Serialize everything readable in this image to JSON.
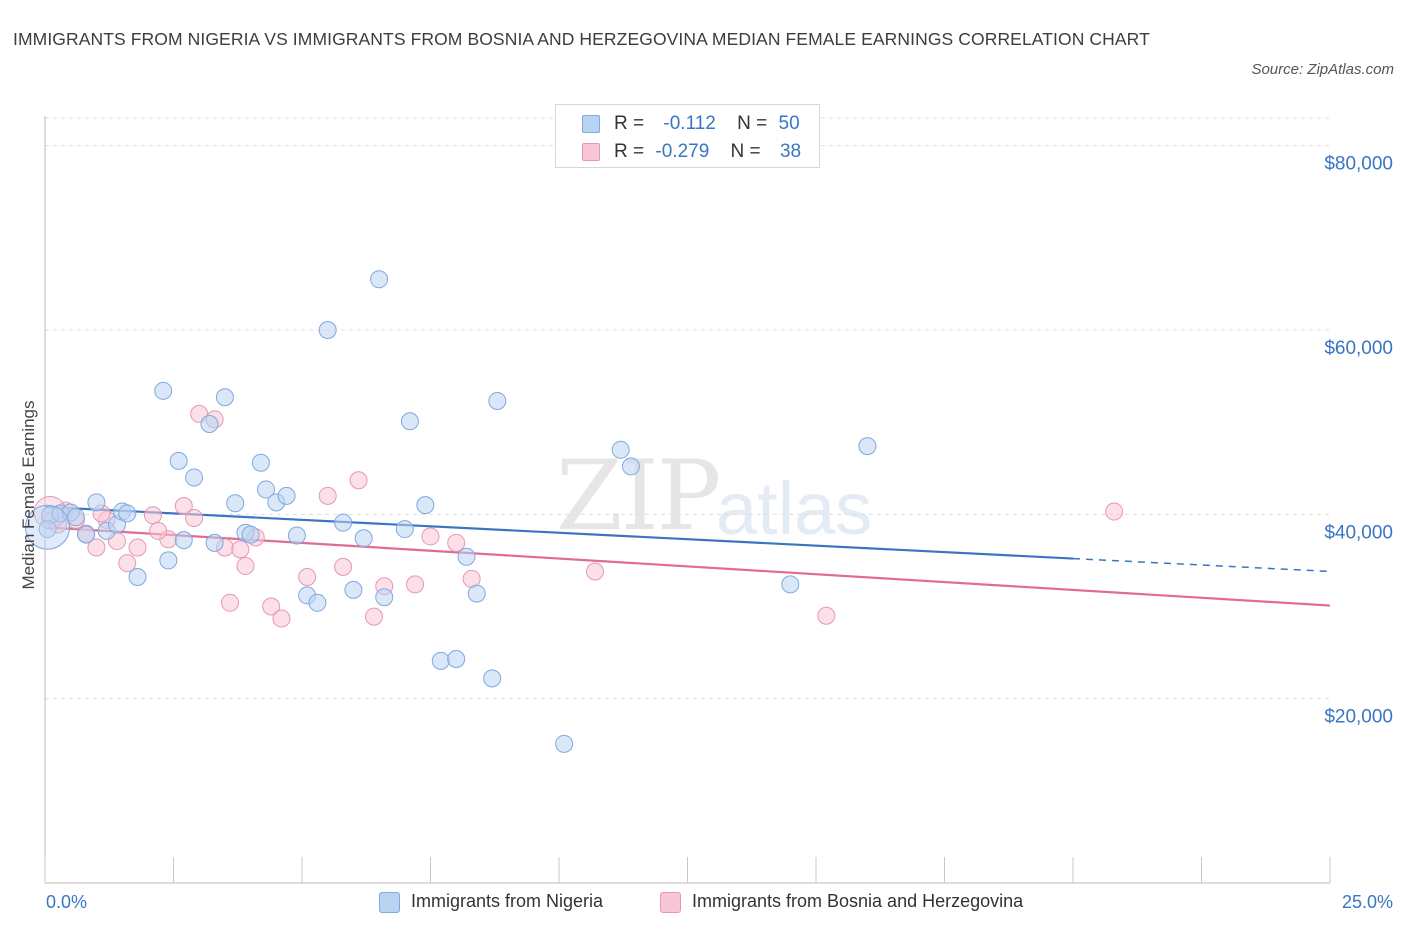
{
  "title": "IMMIGRANTS FROM NIGERIA VS IMMIGRANTS FROM BOSNIA AND HERZEGOVINA MEDIAN FEMALE EARNINGS CORRELATION CHART",
  "source": "Source: ZipAtlas.com",
  "watermark": {
    "zip": "ZIP",
    "atlas": "atlas"
  },
  "legend": {
    "rows": [
      {
        "r_label": "R =",
        "r_value": "-0.112",
        "n_label": "N =",
        "n_value": "50"
      },
      {
        "r_label": "R =",
        "r_value": "-0.279",
        "n_label": "N =",
        "n_value": "38"
      }
    ]
  },
  "bottom_legend": [
    "Immigrants from Nigeria",
    "Immigrants from Bosnia and Herzegovina"
  ],
  "colors": {
    "nigeria_fill": "#b9d3f3",
    "nigeria_stroke": "#7fa9df",
    "nigeria_line": "#3a75c4",
    "bosnia_fill": "#f8c6d6",
    "bosnia_stroke": "#e897b2",
    "bosnia_line": "#e06b95",
    "tick_label": "#3a75c4",
    "grid": "#dddddd"
  },
  "chart_data": {
    "type": "scatter",
    "title": "IMMIGRANTS FROM NIGERIA VS IMMIGRANTS FROM BOSNIA AND HERZEGOVINA MEDIAN FEMALE EARNINGS CORRELATION CHART",
    "xlabel": "",
    "ylabel": "Median Female Earnings",
    "xlim": [
      0,
      25
    ],
    "ylim": [
      0,
      80000
    ],
    "x_tick_labels": [
      "0.0%",
      "25.0%"
    ],
    "y_ticks": [
      20000,
      40000,
      60000,
      80000
    ],
    "y_tick_labels": [
      "$20,000",
      "$40,000",
      "$60,000",
      "$80,000"
    ],
    "grid": true,
    "legend_position": "top-center",
    "series": [
      {
        "name": "Immigrants from Nigeria",
        "r": -0.112,
        "n": 50,
        "trend": {
          "x": [
            0,
            20
          ],
          "y": [
            40800,
            35200
          ],
          "dashed_extension_to_x": 25,
          "dashed_end_y": 33800
        },
        "points": [
          [
            0.1,
            39900
          ],
          [
            0.3,
            40100
          ],
          [
            0.5,
            40200
          ],
          [
            0.8,
            37800
          ],
          [
            1.0,
            41300
          ],
          [
            1.2,
            38200
          ],
          [
            1.4,
            38900
          ],
          [
            1.5,
            40300
          ],
          [
            1.8,
            33200
          ],
          [
            2.3,
            53400
          ],
          [
            2.4,
            35000
          ],
          [
            2.6,
            45800
          ],
          [
            2.7,
            37200
          ],
          [
            2.9,
            44000
          ],
          [
            3.2,
            49800
          ],
          [
            3.3,
            36900
          ],
          [
            3.5,
            52700
          ],
          [
            3.7,
            41200
          ],
          [
            3.9,
            38000
          ],
          [
            4.0,
            37800
          ],
          [
            4.2,
            45600
          ],
          [
            4.3,
            42700
          ],
          [
            4.5,
            41300
          ],
          [
            4.7,
            42000
          ],
          [
            4.9,
            37700
          ],
          [
            5.1,
            31200
          ],
          [
            5.3,
            30400
          ],
          [
            5.5,
            60000
          ],
          [
            5.8,
            39100
          ],
          [
            6.0,
            31800
          ],
          [
            6.2,
            37400
          ],
          [
            6.5,
            65500
          ],
          [
            6.6,
            31000
          ],
          [
            7.0,
            38400
          ],
          [
            7.1,
            50100
          ],
          [
            7.4,
            41000
          ],
          [
            7.7,
            24100
          ],
          [
            8.0,
            24300
          ],
          [
            8.2,
            35400
          ],
          [
            8.4,
            31400
          ],
          [
            8.7,
            22200
          ],
          [
            8.8,
            52300
          ],
          [
            10.1,
            15100
          ],
          [
            11.2,
            47000
          ],
          [
            11.4,
            45200
          ],
          [
            14.5,
            32400
          ],
          [
            16.0,
            47400
          ],
          [
            0.05,
            38400
          ],
          [
            0.6,
            39700
          ],
          [
            1.6,
            40100
          ]
        ]
      },
      {
        "name": "Immigrants from Bosnia and Herzegovina",
        "r": -0.279,
        "n": 38,
        "trend": {
          "x": [
            0,
            25
          ],
          "y": [
            38600,
            30100
          ]
        },
        "points": [
          [
            0.1,
            39300
          ],
          [
            0.4,
            40400
          ],
          [
            0.6,
            39400
          ],
          [
            0.8,
            37900
          ],
          [
            1.0,
            36400
          ],
          [
            1.2,
            39400
          ],
          [
            1.4,
            37100
          ],
          [
            1.6,
            34700
          ],
          [
            1.8,
            36400
          ],
          [
            2.1,
            39900
          ],
          [
            2.4,
            37300
          ],
          [
            2.7,
            40900
          ],
          [
            2.9,
            39600
          ],
          [
            3.0,
            50900
          ],
          [
            3.3,
            50300
          ],
          [
            3.5,
            36400
          ],
          [
            3.6,
            30400
          ],
          [
            3.8,
            36200
          ],
          [
            3.9,
            34400
          ],
          [
            4.1,
            37500
          ],
          [
            4.4,
            30000
          ],
          [
            4.6,
            28700
          ],
          [
            5.1,
            33200
          ],
          [
            5.5,
            42000
          ],
          [
            5.8,
            34300
          ],
          [
            6.1,
            43700
          ],
          [
            6.4,
            28900
          ],
          [
            6.6,
            32200
          ],
          [
            7.2,
            32400
          ],
          [
            7.5,
            37600
          ],
          [
            8.0,
            36900
          ],
          [
            8.3,
            33000
          ],
          [
            10.7,
            33800
          ],
          [
            15.2,
            29000
          ],
          [
            20.8,
            40300
          ],
          [
            0.25,
            38900
          ],
          [
            1.1,
            40100
          ],
          [
            2.2,
            38200
          ]
        ]
      }
    ]
  }
}
